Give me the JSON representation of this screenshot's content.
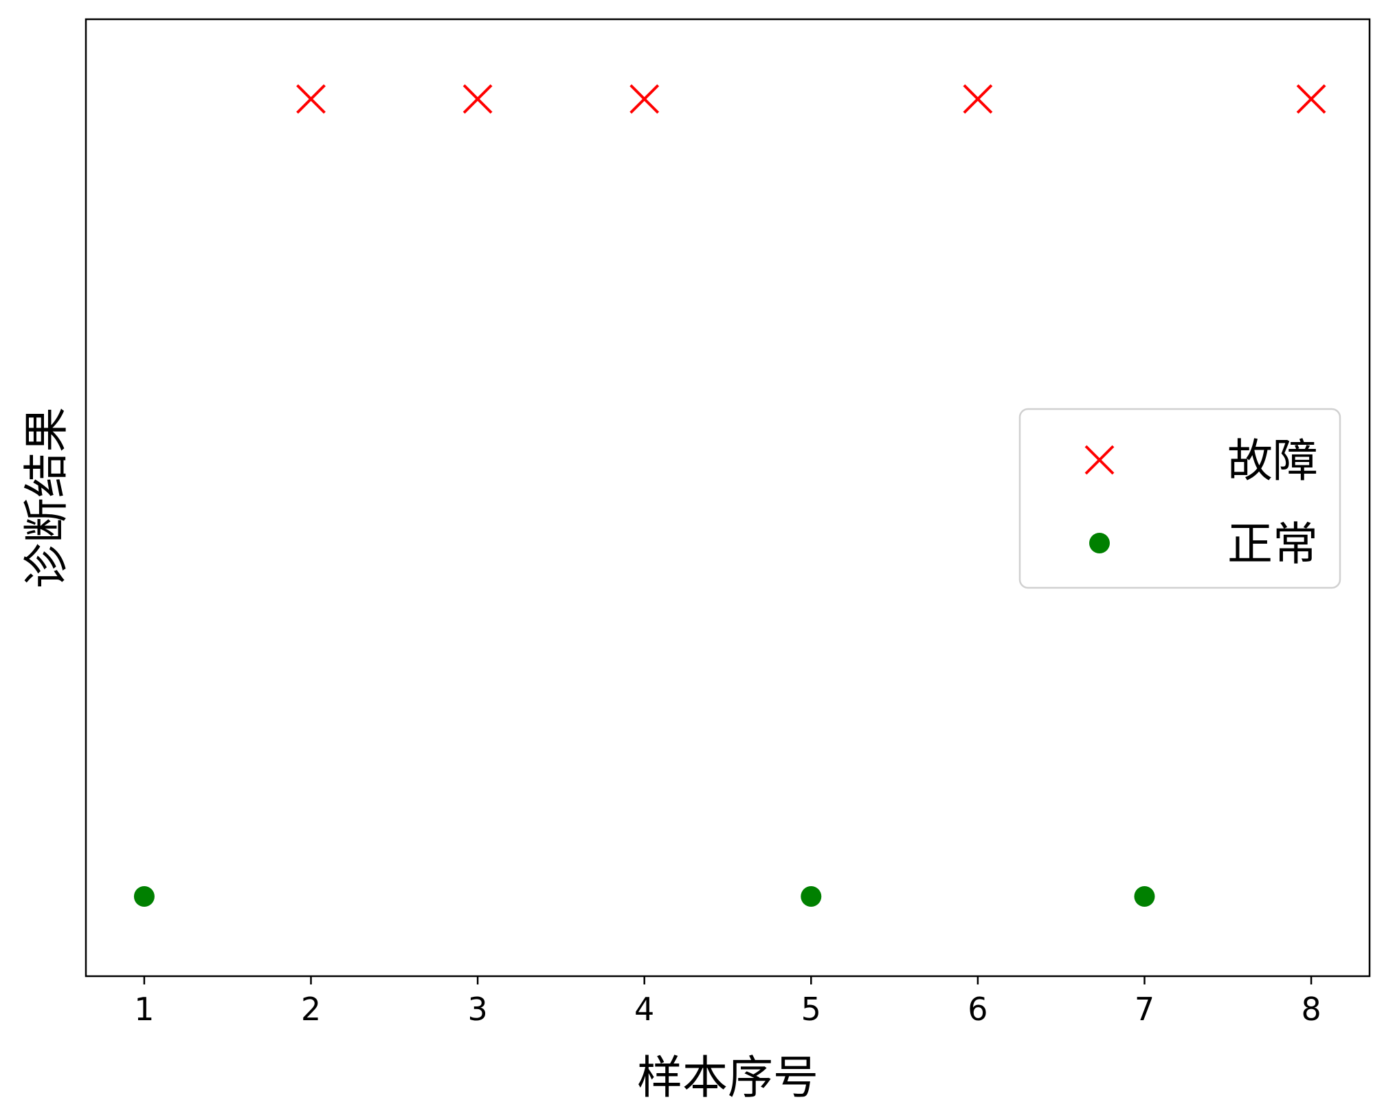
{
  "chart_data": {
    "type": "scatter",
    "title": "",
    "xlabel": "样本序号",
    "ylabel": "诊断结果",
    "x_ticks": [
      1,
      2,
      3,
      4,
      5,
      6,
      7,
      8
    ],
    "xlim": [
      0.65,
      8.35
    ],
    "ylim": [
      -0.1,
      1.1
    ],
    "grid": false,
    "legend_position": "center-right",
    "series": [
      {
        "name": "故障",
        "marker": "x",
        "color": "#ff0000",
        "x": [
          2,
          3,
          4,
          6,
          8
        ],
        "y": [
          1,
          1,
          1,
          1,
          1
        ]
      },
      {
        "name": "正常",
        "marker": "o",
        "color": "#008000",
        "x": [
          1,
          5,
          7
        ],
        "y": [
          0,
          0,
          0
        ]
      }
    ]
  }
}
